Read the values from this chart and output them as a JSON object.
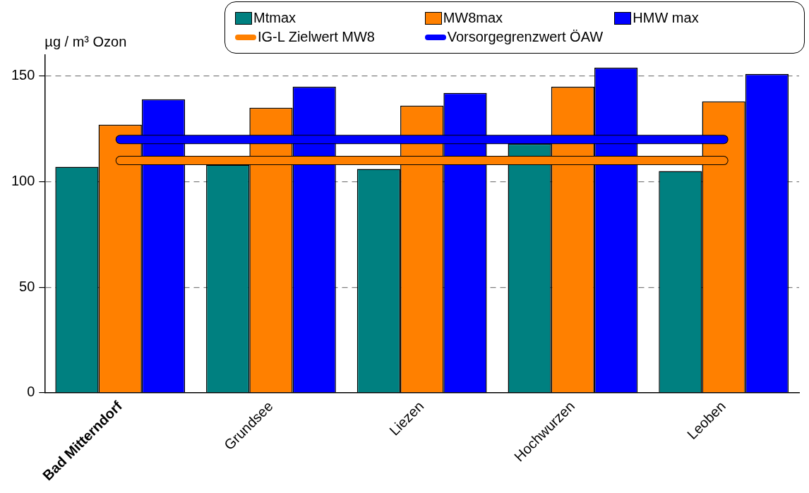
{
  "chart_data": {
    "type": "bar",
    "ylabel": "µg / m³ Ozon",
    "categories": [
      "Bad Mitterndorf",
      "Grundsee",
      "Liezen",
      "Hochwurzen",
      "Leoben"
    ],
    "series": [
      {
        "name": "Mtmax",
        "color": "#008080",
        "values": [
          107,
          108,
          106,
          118,
          105
        ]
      },
      {
        "name": "MW8max",
        "color": "#ff8000",
        "values": [
          127,
          135,
          136,
          145,
          138
        ]
      },
      {
        "name": "HMW max",
        "color": "#0000ff",
        "values": [
          139,
          145,
          142,
          154,
          151
        ]
      },
      {
        "name": "IG-L Zielwert MW8",
        "type": "line",
        "color": "#ff8000",
        "values": [
          110,
          110,
          110,
          110,
          110
        ]
      },
      {
        "name": "Vorsorgegrenzwert ÖAW",
        "type": "line",
        "color": "#0000ff",
        "values": [
          120,
          120,
          120,
          120,
          120
        ]
      }
    ],
    "ylim": [
      0,
      160
    ],
    "yticks": [
      0,
      50,
      100,
      150
    ],
    "grid": "y",
    "legend": "top",
    "marker": "none"
  }
}
